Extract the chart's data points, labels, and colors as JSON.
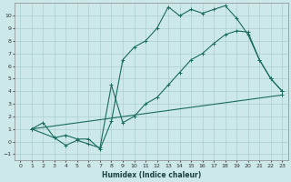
{
  "xlabel": "Humidex (Indice chaleur)",
  "bg_color": "#cce8e8",
  "grid_color": "#aacfcf",
  "line_color": "#1a6b5e",
  "xlim": [
    -0.5,
    23.5
  ],
  "ylim": [
    -1.5,
    11.0
  ],
  "xticks": [
    0,
    1,
    2,
    3,
    4,
    5,
    6,
    7,
    8,
    9,
    10,
    11,
    12,
    13,
    14,
    15,
    16,
    17,
    18,
    19,
    20,
    21,
    22,
    23
  ],
  "yticks": [
    -1,
    0,
    1,
    2,
    3,
    4,
    5,
    6,
    7,
    8,
    9,
    10
  ],
  "line1_x": [
    1,
    2,
    3,
    4,
    5,
    6,
    7,
    8,
    9,
    10,
    11,
    12,
    13,
    14,
    15,
    16,
    17,
    18,
    19,
    20,
    21,
    22,
    23
  ],
  "line1_y": [
    1,
    1.5,
    0.3,
    0.5,
    0.2,
    0.2,
    -0.6,
    1.6,
    6.5,
    7.5,
    8.0,
    9.0,
    10.7,
    10.0,
    10.5,
    10.2,
    10.5,
    10.8,
    9.8,
    8.5,
    6.5,
    5.0,
    4.0
  ],
  "line2_x": [
    1,
    3,
    4,
    5,
    6,
    7,
    8,
    9,
    10,
    11,
    12,
    13,
    14,
    15,
    16,
    17,
    18,
    19,
    20,
    21,
    22,
    23
  ],
  "line2_y": [
    1,
    0.3,
    -0.3,
    0.1,
    -0.2,
    -0.5,
    4.5,
    1.5,
    2.0,
    3.0,
    3.5,
    4.5,
    5.5,
    6.5,
    7.0,
    7.8,
    8.5,
    8.8,
    8.7,
    6.5,
    5.0,
    4.0
  ],
  "line3_x": [
    1,
    23
  ],
  "line3_y": [
    1,
    3.7
  ]
}
